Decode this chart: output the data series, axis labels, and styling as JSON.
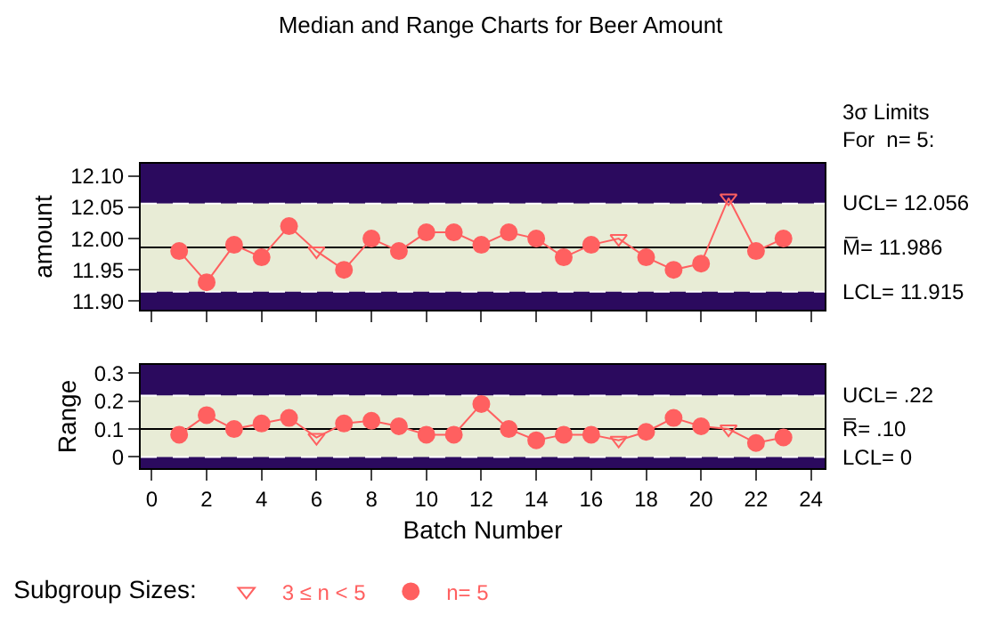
{
  "chart_data": [
    {
      "type": "line",
      "title": "Median and Range Charts for Beer Amount",
      "ylabel": "amount",
      "annotations": [
        "3σ Limits\nFor  n= 5:"
      ],
      "x": [
        1,
        2,
        3,
        4,
        5,
        6,
        7,
        8,
        9,
        10,
        11,
        12,
        13,
        14,
        15,
        16,
        17,
        18,
        19,
        20,
        21,
        22,
        23
      ],
      "series": [
        {
          "type": "line",
          "color": "#ff6060",
          "marker": "none",
          "values": [
            11.98,
            11.93,
            11.99,
            11.97,
            12.02,
            11.98,
            11.95,
            12.0,
            11.98,
            12.01,
            12.01,
            11.99,
            12.01,
            12.0,
            11.97,
            11.99,
            12.0,
            11.97,
            11.95,
            11.96,
            12.065,
            11.98,
            12.0
          ]
        },
        {
          "type": "scatter",
          "color": "#ff6060",
          "marker": "triangle",
          "values": [
            null,
            null,
            null,
            null,
            null,
            11.98,
            null,
            null,
            null,
            null,
            null,
            null,
            null,
            null,
            null,
            null,
            12.0,
            null,
            null,
            null,
            12.065,
            null,
            null
          ]
        },
        {
          "type": "scatter",
          "color": "#ff6060",
          "marker": "circle",
          "values": [
            11.98,
            11.93,
            11.99,
            11.97,
            12.02,
            null,
            11.95,
            12.0,
            11.98,
            12.01,
            12.01,
            11.99,
            12.01,
            12.0,
            11.97,
            11.99,
            null,
            11.97,
            11.95,
            11.96,
            null,
            11.98,
            12.0
          ]
        }
      ],
      "xlim": [
        -0.4,
        24.5
      ],
      "xticks": [
        {
          "value": 0,
          "label": null
        },
        {
          "value": 2,
          "label": null
        },
        {
          "value": 4,
          "label": null
        },
        {
          "value": 6,
          "label": null
        },
        {
          "value": 8,
          "label": null
        },
        {
          "value": 10,
          "label": null
        },
        {
          "value": 12,
          "label": null
        },
        {
          "value": 14,
          "label": null
        },
        {
          "value": 16,
          "label": null
        },
        {
          "value": 18,
          "label": null
        },
        {
          "value": 20,
          "label": null
        },
        {
          "value": 22,
          "label": null
        },
        {
          "value": 24,
          "label": null
        }
      ],
      "ylim": [
        11.886,
        12.12
      ],
      "yticks": [
        {
          "value": 11.9,
          "label": "11.90"
        },
        {
          "value": 11.95,
          "label": "11.95"
        },
        {
          "value": 12.0,
          "label": "12.00"
        },
        {
          "value": 12.05,
          "label": "12.05"
        },
        {
          "value": 12.1,
          "label": "12.10"
        }
      ],
      "tick_labels": "y",
      "grid": false,
      "legend": false,
      "bands": [
        {
          "axis": "y",
          "from": 12.056,
          "to": 12.12,
          "color": "#2b0a5e"
        },
        {
          "axis": "y",
          "from": 11.915,
          "to": 12.056,
          "color": "#e8ecd6"
        },
        {
          "axis": "y",
          "from": 11.886,
          "to": 11.915,
          "color": "#2b0a5e"
        }
      ],
      "ref_lines": [
        {
          "axis": "y",
          "value": 12.056,
          "label": "UCL= 12.056",
          "color": "#ffffff",
          "line_style": "dashed"
        },
        {
          "axis": "y",
          "value": 11.986,
          "label": "M̅= 11.986",
          "color": "#000000",
          "line_style": "solid"
        },
        {
          "axis": "y",
          "value": 11.915,
          "label": "LCL= 11.915",
          "color": "#ffffff",
          "line_style": "dashed"
        }
      ]
    },
    {
      "type": "line",
      "xlabel": "Batch Number",
      "ylabel": "Range",
      "legend_title": "Subgroup Sizes:",
      "x": [
        1,
        2,
        3,
        4,
        5,
        6,
        7,
        8,
        9,
        10,
        11,
        12,
        13,
        14,
        15,
        16,
        17,
        18,
        19,
        20,
        21,
        22,
        23
      ],
      "series": [
        {
          "type": "line",
          "color": "#ff6060",
          "marker": "none",
          "values": [
            0.08,
            0.15,
            0.1,
            0.12,
            0.14,
            0.07,
            0.12,
            0.13,
            0.11,
            0.08,
            0.08,
            0.19,
            0.1,
            0.06,
            0.08,
            0.08,
            0.06,
            0.09,
            0.14,
            0.11,
            0.1,
            0.05,
            0.07
          ]
        },
        {
          "type": "scatter",
          "name": "3 ≤ n < 5",
          "color": "#ff6060",
          "marker": "triangle",
          "values": [
            null,
            null,
            null,
            null,
            null,
            0.07,
            null,
            null,
            null,
            null,
            null,
            null,
            null,
            null,
            null,
            null,
            0.06,
            null,
            null,
            null,
            0.1,
            null,
            null
          ]
        },
        {
          "type": "scatter",
          "name": "n= 5",
          "color": "#ff6060",
          "marker": "circle",
          "values": [
            0.08,
            0.15,
            0.1,
            0.12,
            0.14,
            null,
            0.12,
            0.13,
            0.11,
            0.08,
            0.08,
            0.19,
            0.1,
            0.06,
            0.08,
            0.08,
            null,
            0.09,
            0.14,
            0.11,
            null,
            0.05,
            0.07
          ]
        }
      ],
      "xlim": [
        -0.4,
        24.5
      ],
      "xticks": [
        0,
        2,
        4,
        6,
        8,
        10,
        12,
        14,
        16,
        18,
        20,
        22,
        24
      ],
      "ylim": [
        -0.04,
        0.33
      ],
      "yticks": [
        0,
        0.1,
        0.2,
        0.3
      ],
      "grid": false,
      "legend": "bottom",
      "bands": [
        {
          "axis": "y",
          "from": 0.22,
          "to": 0.33,
          "color": "#2b0a5e"
        },
        {
          "axis": "y",
          "from": 0,
          "to": 0.22,
          "color": "#e8ecd6"
        },
        {
          "axis": "y",
          "from": -0.04,
          "to": 0,
          "color": "#2b0a5e"
        }
      ],
      "ref_lines": [
        {
          "axis": "y",
          "value": 0.22,
          "label": "UCL= .22",
          "color": "#ffffff",
          "line_style": "dashed"
        },
        {
          "axis": "y",
          "value": 0.1,
          "label": "R̅= .10",
          "color": "#000000",
          "line_style": "solid"
        },
        {
          "axis": "y",
          "value": 0,
          "label": "LCL= 0",
          "color": "#ffffff",
          "line_style": "dashed"
        }
      ]
    }
  ]
}
